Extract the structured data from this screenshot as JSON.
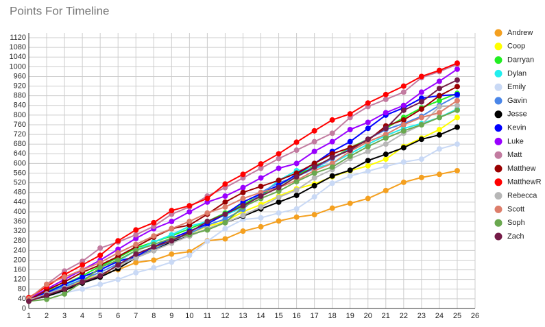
{
  "chart_data": {
    "type": "line",
    "title": "Points For Timeline",
    "x": [
      1,
      2,
      3,
      4,
      5,
      6,
      7,
      8,
      9,
      10,
      11,
      12,
      13,
      14,
      15,
      16,
      17,
      18,
      19,
      20,
      21,
      22,
      23,
      24,
      25
    ],
    "xlim": [
      1,
      26
    ],
    "xticks": [
      1,
      2,
      3,
      4,
      5,
      6,
      7,
      8,
      9,
      10,
      11,
      12,
      13,
      14,
      15,
      16,
      17,
      18,
      19,
      20,
      21,
      22,
      23,
      24,
      25,
      26
    ],
    "ylim": [
      0,
      1140
    ],
    "yticks": [
      0,
      40,
      80,
      120,
      160,
      200,
      240,
      280,
      320,
      360,
      400,
      440,
      480,
      520,
      560,
      600,
      640,
      680,
      720,
      760,
      800,
      840,
      880,
      920,
      960,
      1000,
      1040,
      1080,
      1120
    ],
    "grid": true,
    "legend": "right",
    "series": [
      {
        "name": "Andrew",
        "color": "#f4a020",
        "values": [
          40,
          60,
          90,
          115,
          140,
          160,
          190,
          200,
          225,
          235,
          280,
          288,
          320,
          338,
          362,
          378,
          388,
          415,
          435,
          455,
          488,
          522,
          542,
          555,
          570
        ]
      },
      {
        "name": "Coop",
        "color": "#ffff00",
        "values": [
          38,
          55,
          85,
          115,
          140,
          175,
          215,
          250,
          285,
          310,
          340,
          360,
          400,
          430,
          465,
          495,
          515,
          545,
          570,
          590,
          618,
          670,
          705,
          740,
          790
        ]
      },
      {
        "name": "Darryan",
        "color": "#22ee22",
        "values": [
          40,
          70,
          100,
          135,
          175,
          210,
          250,
          275,
          300,
          330,
          360,
          395,
          430,
          470,
          510,
          550,
          590,
          620,
          665,
          700,
          745,
          790,
          830,
          860,
          890
        ]
      },
      {
        "name": "Dylan",
        "color": "#22eeee",
        "values": [
          40,
          65,
          95,
          130,
          160,
          195,
          240,
          275,
          305,
          340,
          360,
          385,
          420,
          470,
          530,
          570,
          580,
          600,
          640,
          680,
          715,
          745,
          765,
          790,
          825
        ]
      },
      {
        "name": "Emily",
        "color": "#c9d9f5",
        "values": [
          35,
          55,
          65,
          80,
          100,
          120,
          148,
          168,
          192,
          220,
          278,
          330,
          368,
          375,
          395,
          412,
          462,
          518,
          548,
          568,
          588,
          606,
          618,
          660,
          680
        ]
      },
      {
        "name": "Gavin",
        "color": "#4a86e8",
        "values": [
          35,
          60,
          90,
          120,
          150,
          185,
          210,
          245,
          280,
          310,
          345,
          370,
          410,
          480,
          520,
          545,
          580,
          620,
          660,
          700,
          740,
          765,
          795,
          840,
          880
        ]
      },
      {
        "name": "Jesse",
        "color": "#000000",
        "values": [
          35,
          50,
          75,
          105,
          130,
          165,
          210,
          240,
          275,
          300,
          330,
          355,
          382,
          412,
          440,
          468,
          508,
          548,
          572,
          612,
          638,
          665,
          700,
          718,
          750
        ]
      },
      {
        "name": "Kevin",
        "color": "#0000ff",
        "values": [
          38,
          65,
          100,
          130,
          160,
          195,
          215,
          255,
          290,
          320,
          350,
          390,
          440,
          475,
          510,
          555,
          600,
          650,
          690,
          745,
          800,
          830,
          870,
          880,
          885
        ]
      },
      {
        "name": "Luke",
        "color": "#9900ff",
        "values": [
          40,
          80,
          120,
          160,
          200,
          245,
          290,
          330,
          360,
          400,
          440,
          465,
          500,
          540,
          580,
          600,
          650,
          690,
          740,
          770,
          810,
          840,
          895,
          940,
          990
        ]
      },
      {
        "name": "Matt",
        "color": "#c27ba0",
        "values": [
          40,
          100,
          155,
          195,
          250,
          275,
          305,
          340,
          390,
          420,
          465,
          500,
          540,
          580,
          620,
          655,
          690,
          725,
          790,
          835,
          865,
          895,
          955,
          980,
          1010
        ]
      },
      {
        "name": "Matthew",
        "color": "#990000",
        "values": [
          35,
          75,
          110,
          150,
          180,
          215,
          255,
          295,
          330,
          345,
          390,
          440,
          480,
          505,
          530,
          560,
          600,
          640,
          665,
          695,
          755,
          780,
          825,
          880,
          918
        ]
      },
      {
        "name": "MatthewR",
        "color": "#ff0000",
        "values": [
          45,
          90,
          140,
          180,
          220,
          280,
          325,
          355,
          405,
          425,
          455,
          515,
          555,
          598,
          640,
          688,
          735,
          780,
          805,
          850,
          885,
          920,
          960,
          985,
          1015
        ]
      },
      {
        "name": "Rebecca",
        "color": "#b7b7b7",
        "values": [
          35,
          60,
          85,
          110,
          140,
          175,
          210,
          240,
          270,
          300,
          330,
          355,
          385,
          420,
          460,
          490,
          540,
          575,
          620,
          650,
          680,
          725,
          760,
          835,
          840
        ]
      },
      {
        "name": "Scott",
        "color": "#dd7e6b",
        "values": [
          40,
          100,
          130,
          160,
          190,
          230,
          265,
          300,
          330,
          360,
          395,
          420,
          455,
          480,
          500,
          530,
          570,
          600,
          650,
          690,
          720,
          760,
          790,
          810,
          860
        ]
      },
      {
        "name": "Soph",
        "color": "#6aa84f",
        "values": [
          30,
          38,
          60,
          110,
          170,
          200,
          240,
          265,
          290,
          305,
          325,
          355,
          420,
          455,
          485,
          525,
          560,
          585,
          630,
          670,
          705,
          735,
          760,
          790,
          820
        ]
      },
      {
        "name": "Zach",
        "color": "#741b47",
        "values": [
          30,
          55,
          80,
          110,
          135,
          180,
          225,
          255,
          280,
          315,
          360,
          390,
          425,
          465,
          500,
          545,
          585,
          625,
          655,
          700,
          745,
          820,
          855,
          910,
          945
        ]
      }
    ]
  }
}
